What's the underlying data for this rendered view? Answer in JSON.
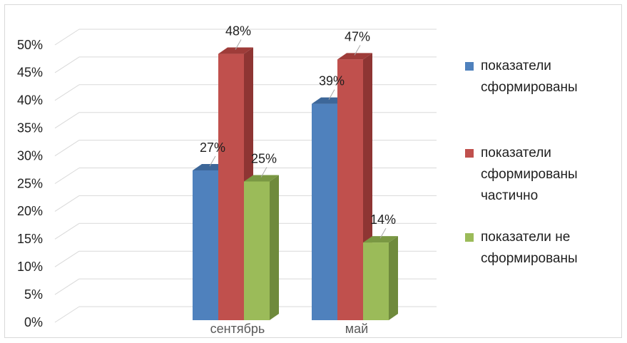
{
  "chart_data": {
    "type": "bar",
    "categories": [
      "",
      "сентябрь",
      "май"
    ],
    "series": [
      {
        "name": "показатели сформированы",
        "values": [
          null,
          27,
          39
        ],
        "labels": [
          "",
          "27%",
          "39%"
        ],
        "color": "#4f81bd",
        "side": "#385d8a",
        "top": "#3d6799"
      },
      {
        "name": "показатели сформированы частично",
        "values": [
          null,
          48,
          47
        ],
        "labels": [
          "",
          "48%",
          "47%"
        ],
        "color": "#c0504d",
        "side": "#8e3533",
        "top": "#9e3c39"
      },
      {
        "name": "показатели не сформированы",
        "values": [
          null,
          25,
          14
        ],
        "labels": [
          "",
          "25%",
          "14%"
        ],
        "color": "#9bbb59",
        "side": "#6f8a3c",
        "top": "#7a9843"
      }
    ],
    "y_ticks": [
      "0%",
      "5%",
      "10%",
      "15%",
      "20%",
      "25%",
      "30%",
      "35%",
      "40%",
      "45%",
      "50%"
    ],
    "ylim": [
      0,
      50
    ],
    "grid": true,
    "legend": "right",
    "three_d": true
  }
}
